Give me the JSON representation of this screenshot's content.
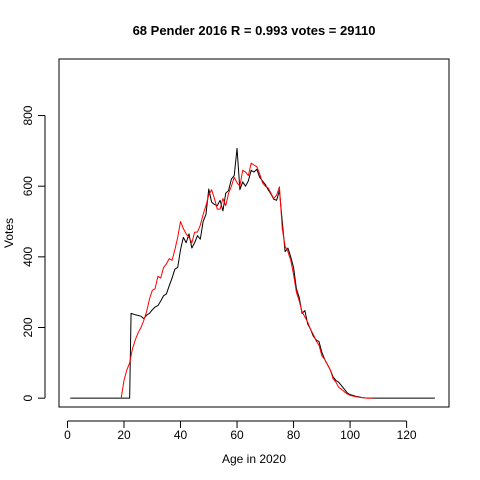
{
  "chart_data": {
    "type": "line",
    "title": "68 Pender 2016 R = 0.993 votes = 29110",
    "xlabel": "Age in 2020",
    "ylabel": "Votes",
    "xlim": [
      -3,
      135
    ],
    "ylim": [
      -25,
      960
    ],
    "x_ticks": [
      0,
      20,
      40,
      60,
      80,
      100,
      120
    ],
    "y_ticks": [
      0,
      200,
      400,
      600,
      800
    ],
    "grid": false,
    "colors": {
      "actual": "#000000",
      "model": "#ff0000",
      "axis": "#000000"
    },
    "series": [
      {
        "key": "actual",
        "points": [
          [
            1,
            0
          ],
          [
            5,
            0
          ],
          [
            10,
            0
          ],
          [
            15,
            0
          ],
          [
            20,
            0
          ],
          [
            21,
            0
          ],
          [
            22,
            0
          ],
          [
            22.5,
            240
          ],
          [
            24,
            236
          ],
          [
            26,
            232
          ],
          [
            27,
            225
          ],
          [
            28,
            235
          ],
          [
            29,
            240
          ],
          [
            30,
            250
          ],
          [
            31,
            258
          ],
          [
            32,
            262
          ],
          [
            33,
            275
          ],
          [
            34,
            290
          ],
          [
            35,
            295
          ],
          [
            36,
            318
          ],
          [
            37,
            340
          ],
          [
            38,
            365
          ],
          [
            39,
            370
          ],
          [
            40,
            420
          ],
          [
            41,
            455
          ],
          [
            42,
            440
          ],
          [
            43,
            465
          ],
          [
            44,
            425
          ],
          [
            45,
            440
          ],
          [
            46,
            460
          ],
          [
            47,
            450
          ],
          [
            48,
            500
          ],
          [
            49,
            520
          ],
          [
            50,
            592
          ],
          [
            51,
            555
          ],
          [
            52,
            548
          ],
          [
            53,
            545
          ],
          [
            54,
            560
          ],
          [
            55,
            530
          ],
          [
            56,
            580
          ],
          [
            57,
            588
          ],
          [
            58,
            620
          ],
          [
            59,
            630
          ],
          [
            60,
            707
          ],
          [
            61,
            590
          ],
          [
            62,
            612
          ],
          [
            63,
            600
          ],
          [
            64,
            615
          ],
          [
            65,
            645
          ],
          [
            66,
            640
          ],
          [
            67,
            648
          ],
          [
            68,
            625
          ],
          [
            69,
            615
          ],
          [
            70,
            605
          ],
          [
            71,
            590
          ],
          [
            72,
            578
          ],
          [
            73,
            563
          ],
          [
            74,
            560
          ],
          [
            75,
            588
          ],
          [
            76,
            500
          ],
          [
            77,
            415
          ],
          [
            78,
            425
          ],
          [
            79,
            400
          ],
          [
            80,
            370
          ],
          [
            81,
            310
          ],
          [
            82,
            285
          ],
          [
            83,
            240
          ],
          [
            84,
            248
          ],
          [
            85,
            210
          ],
          [
            86,
            195
          ],
          [
            87,
            175
          ],
          [
            88,
            165
          ],
          [
            89,
            160
          ],
          [
            90,
            130
          ],
          [
            91,
            110
          ],
          [
            92,
            95
          ],
          [
            93,
            80
          ],
          [
            94,
            60
          ],
          [
            95,
            50
          ],
          [
            96,
            45
          ],
          [
            97,
            35
          ],
          [
            98,
            25
          ],
          [
            99,
            15
          ],
          [
            100,
            10
          ],
          [
            101,
            8
          ],
          [
            102,
            5
          ],
          [
            103,
            4
          ],
          [
            104,
            2
          ],
          [
            105,
            1
          ],
          [
            106,
            0
          ],
          [
            108,
            0
          ],
          [
            110,
            0
          ],
          [
            115,
            0
          ],
          [
            120,
            0
          ],
          [
            125,
            0
          ],
          [
            130,
            0
          ]
        ]
      },
      {
        "key": "model",
        "points": [
          [
            19,
            0
          ],
          [
            20,
            50
          ],
          [
            21,
            80
          ],
          [
            22,
            100
          ],
          [
            23,
            140
          ],
          [
            24,
            165
          ],
          [
            25,
            185
          ],
          [
            26,
            200
          ],
          [
            27,
            220
          ],
          [
            28,
            245
          ],
          [
            29,
            280
          ],
          [
            30,
            305
          ],
          [
            31,
            310
          ],
          [
            32,
            345
          ],
          [
            33,
            340
          ],
          [
            34,
            370
          ],
          [
            35,
            380
          ],
          [
            36,
            395
          ],
          [
            37,
            390
          ],
          [
            38,
            420
          ],
          [
            39,
            455
          ],
          [
            40,
            500
          ],
          [
            41,
            480
          ],
          [
            42,
            465
          ],
          [
            43,
            455
          ],
          [
            44,
            440
          ],
          [
            45,
            470
          ],
          [
            46,
            470
          ],
          [
            47,
            490
          ],
          [
            48,
            520
          ],
          [
            49,
            545
          ],
          [
            50,
            575
          ],
          [
            51,
            590
          ],
          [
            52,
            565
          ],
          [
            53,
            535
          ],
          [
            54,
            535
          ],
          [
            55,
            565
          ],
          [
            56,
            545
          ],
          [
            57,
            580
          ],
          [
            58,
            600
          ],
          [
            59,
            625
          ],
          [
            60,
            610
          ],
          [
            61,
            600
          ],
          [
            62,
            645
          ],
          [
            63,
            640
          ],
          [
            64,
            630
          ],
          [
            65,
            665
          ],
          [
            66,
            660
          ],
          [
            67,
            655
          ],
          [
            68,
            635
          ],
          [
            69,
            610
          ],
          [
            70,
            600
          ],
          [
            71,
            595
          ],
          [
            72,
            580
          ],
          [
            73,
            565
          ],
          [
            74,
            575
          ],
          [
            75,
            598
          ],
          [
            76,
            480
          ],
          [
            77,
            430
          ],
          [
            78,
            415
          ],
          [
            79,
            390
          ],
          [
            80,
            350
          ],
          [
            81,
            300
          ],
          [
            82,
            275
          ],
          [
            83,
            245
          ],
          [
            84,
            230
          ],
          [
            85,
            215
          ],
          [
            86,
            195
          ],
          [
            87,
            180
          ],
          [
            88,
            162
          ],
          [
            89,
            150
          ],
          [
            90,
            120
          ],
          [
            91,
            110
          ],
          [
            92,
            95
          ],
          [
            93,
            80
          ],
          [
            94,
            55
          ],
          [
            95,
            45
          ],
          [
            96,
            30
          ],
          [
            97,
            25
          ],
          [
            98,
            18
          ],
          [
            99,
            12
          ],
          [
            100,
            8
          ],
          [
            101,
            6
          ],
          [
            102,
            4
          ],
          [
            103,
            3
          ],
          [
            104,
            2
          ],
          [
            105,
            1
          ],
          [
            106,
            0
          ],
          [
            108,
            0
          ]
        ]
      }
    ]
  }
}
